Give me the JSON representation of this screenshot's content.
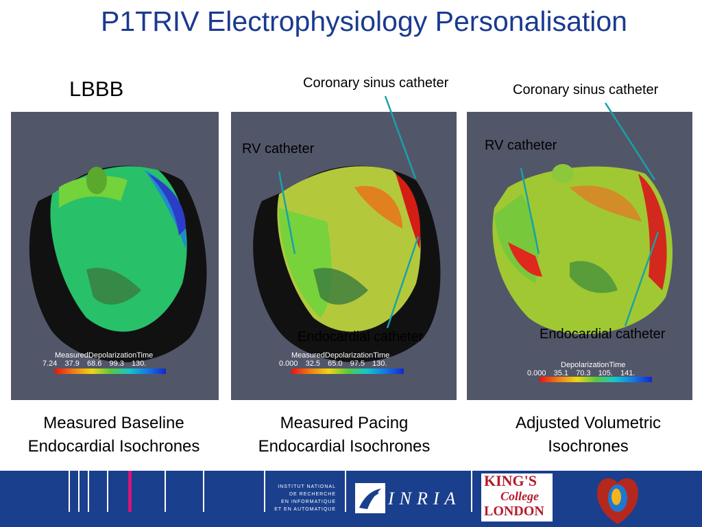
{
  "title": "P1TRIV Electrophysiology Personalisation",
  "subtitle": "LBBB",
  "annotations": {
    "cs_catheter_mid": "Coronary sinus catheter",
    "cs_catheter_right": "Coronary sinus catheter",
    "rv_catheter_mid": "RV catheter",
    "rv_catheter_right": "RV catheter",
    "endo_catheter_mid": "Endocardial catheter",
    "endo_catheter_right": "Endocardial catheter"
  },
  "panels": [
    {
      "legend_title": "MeasuredDepolarizationTime",
      "ticks": [
        "7.24",
        "37.9",
        "68.6",
        "99.3",
        "130."
      ],
      "caption_line1": "Measured Baseline",
      "caption_line2": "Endocardial Isochrones"
    },
    {
      "legend_title": "MeasuredDepolarizationTime",
      "ticks": [
        "0.000",
        "32.5",
        "65.0",
        "97.5",
        "130."
      ],
      "caption_line1": "Measured Pacing",
      "caption_line2": "Endocardial Isochrones"
    },
    {
      "legend_title": "DepolarizationTime",
      "ticks": [
        "0.000",
        "35.1",
        "70.3",
        "105.",
        "141."
      ],
      "caption_line1": "Adjusted Volumetric",
      "caption_line2": "Isochrones"
    }
  ],
  "footer": {
    "institute": [
      "INSTITUT NATIONAL",
      "DE RECHERCHE",
      "EN INFORMATIQUE",
      "ET EN AUTOMATIQUE"
    ],
    "inria": "INRIA",
    "kcl": [
      "KING'S",
      "College",
      "LONDON"
    ]
  },
  "colors": {
    "title": "#1a3a8f",
    "panel_bg": "#525669",
    "footer_bg": "#1a3f8c",
    "annotation_line": "#17a2a8"
  }
}
